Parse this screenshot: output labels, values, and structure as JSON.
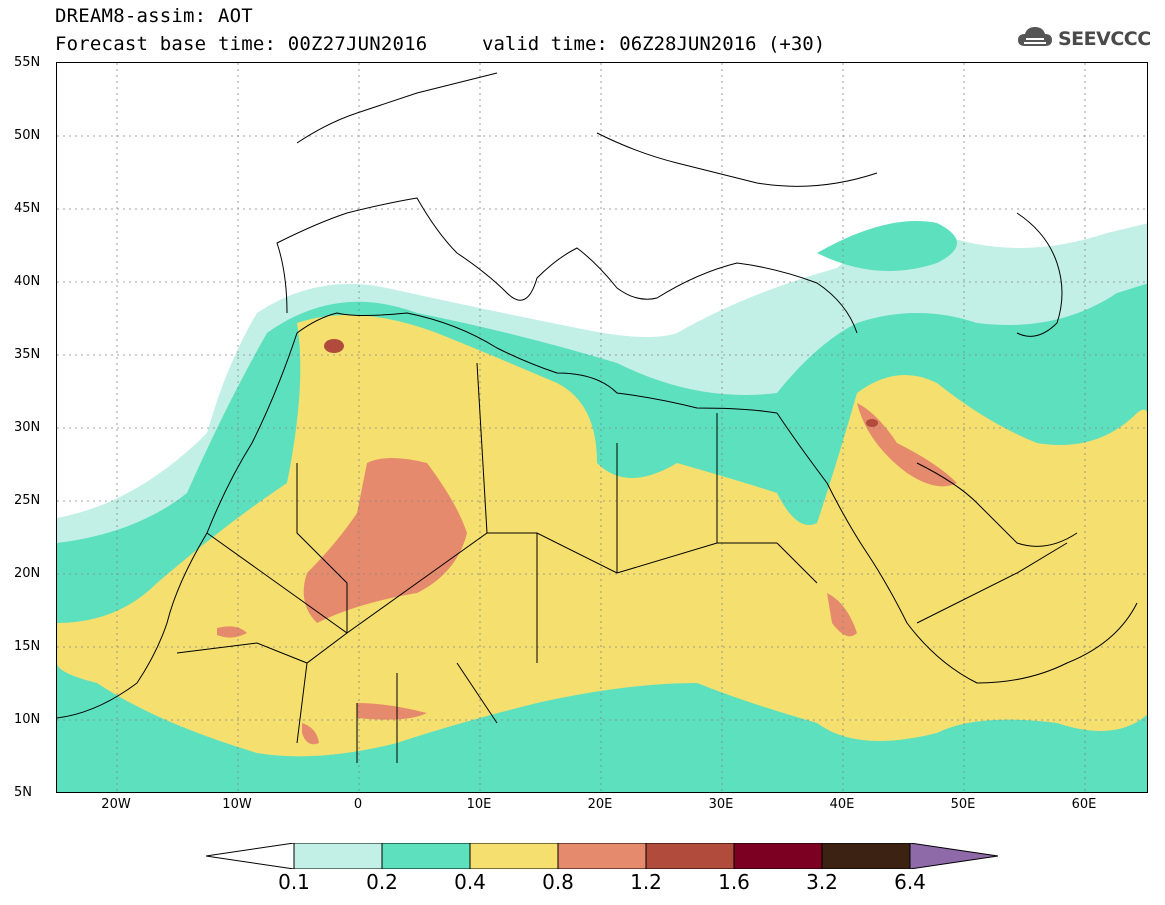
{
  "title": {
    "line1": "DREAM8-assim: AOT",
    "line2": "Forecast base time: 00Z27JUN2016",
    "valid": "valid time: 06Z28JUN2016 (+30)"
  },
  "logo": {
    "text": "SEEVCCC",
    "icon": "cloud-icon"
  },
  "map": {
    "projection": "lat-lon",
    "lon_range": [
      -25,
      65
    ],
    "lat_range": [
      5,
      55
    ],
    "latitude_labels": [
      "55N",
      "50N",
      "45N",
      "40N",
      "35N",
      "30N",
      "25N",
      "20N",
      "15N",
      "10N",
      "5N"
    ],
    "longitude_labels": [
      "20W",
      "10W",
      "0",
      "10E",
      "20E",
      "30E",
      "40E",
      "50E",
      "60E"
    ]
  },
  "colorbar": {
    "ticks": [
      "0.1",
      "0.2",
      "0.4",
      "0.8",
      "1.2",
      "1.6",
      "3.2",
      "6.4"
    ],
    "colors": [
      "#ffffff",
      "#c2efe6",
      "#5ce0bd",
      "#f5df6e",
      "#e58a6c",
      "#b14b3c",
      "#7b0022",
      "#3c2212",
      "#8e6aa8"
    ]
  }
}
